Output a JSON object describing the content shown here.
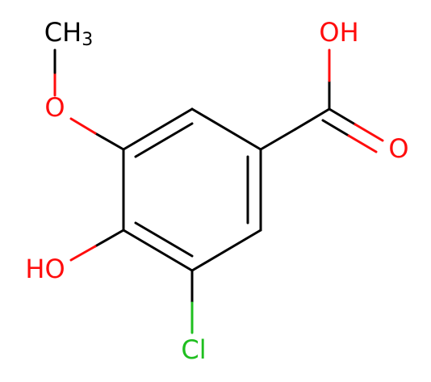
{
  "molecule": {
    "atoms": [
      {
        "label": "CH",
        "subscript": "3"
      },
      {
        "label": "O"
      },
      {
        "label": "OH"
      },
      {
        "label": "O"
      },
      {
        "label": "HO"
      },
      {
        "label": "Cl"
      }
    ]
  }
}
